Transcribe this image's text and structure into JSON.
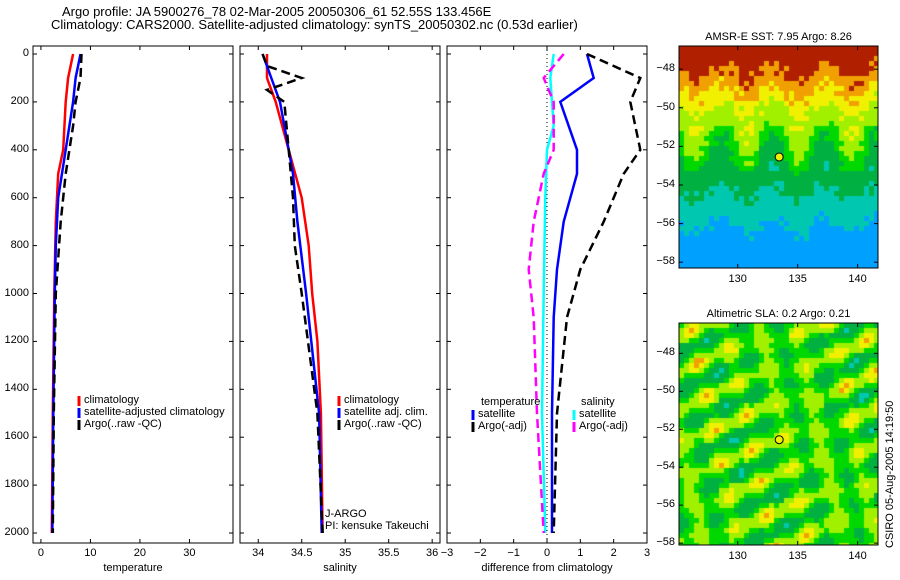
{
  "title_line1": "Argo profile: JA 5900276_78 02-Mar-2005 20050306_61 52.55S 133.456E",
  "title_line2": "Climatology: CARS2000. Satellite-adjusted climatology: synTS_20050302.nc (0.53d earlier)",
  "credit": "CSIRO 05-Aug-2005 14:19:50",
  "chart_data": [
    {
      "type": "line",
      "xlabel": "temperature",
      "ylabel": "",
      "xlim": [
        -1.6,
        38.8
      ],
      "ylim": [
        2040,
        0
      ],
      "xticks": [
        0,
        10,
        20,
        30
      ],
      "yticks": [
        0,
        200,
        400,
        600,
        800,
        1000,
        1200,
        1400,
        1600,
        1800,
        2000
      ],
      "legend": [
        "climatology",
        "satellite-adjusted climatology",
        "Argo(..raw -QC)"
      ],
      "series": [
        {
          "name": "climatology",
          "color": "#ff0000",
          "dash": false,
          "depth": [
            0,
            100,
            200,
            400,
            500,
            700,
            1000,
            1500,
            2000
          ],
          "values": [
            6.5,
            5.5,
            5,
            4.5,
            3.5,
            3,
            2.7,
            2.4,
            2.2
          ]
        },
        {
          "name": "satellite-adjusted climatology",
          "color": "#0000ff",
          "dash": false,
          "depth": [
            0,
            100,
            200,
            400,
            600,
            800,
            1000,
            1500,
            2000
          ],
          "values": [
            8,
            7,
            6.5,
            5,
            3.5,
            3,
            2.8,
            2.5,
            2.3
          ]
        },
        {
          "name": "Argo(..raw -QC)",
          "color": "#000000",
          "dash": true,
          "depth": [
            0,
            100,
            200,
            300,
            500,
            700,
            1000,
            1500,
            2000
          ],
          "values": [
            8.2,
            8,
            7,
            6.5,
            5,
            4,
            3,
            2.6,
            2.4
          ]
        }
      ]
    },
    {
      "type": "line",
      "xlabel": "salinity",
      "xlim": [
        33.79,
        36.09
      ],
      "ylim": [
        2040,
        0
      ],
      "xticks": [
        34,
        34.5,
        35,
        35.5,
        36
      ],
      "legend": [
        "climatology",
        "satellite adj. clim.",
        "Argo(..raw -QC)"
      ],
      "annotations": [
        "J-ARGO",
        "PI: kensuke Takeuchi"
      ],
      "series": [
        {
          "name": "climatology",
          "color": "#ff0000",
          "dash": false,
          "depth": [
            0,
            100,
            200,
            400,
            600,
            800,
            1000,
            1200,
            1500,
            2000
          ],
          "values": [
            34.1,
            34.1,
            34.2,
            34.35,
            34.5,
            34.58,
            34.62,
            34.68,
            34.72,
            34.74
          ]
        },
        {
          "name": "satellite adj. clim.",
          "color": "#0000ff",
          "dash": false,
          "depth": [
            0,
            100,
            200,
            400,
            500,
            700,
            1000,
            1500,
            2000
          ],
          "values": [
            34.05,
            34.15,
            34.25,
            34.35,
            34.4,
            34.45,
            34.55,
            34.7,
            34.73
          ]
        },
        {
          "name": "Argo(..raw -QC)",
          "color": "#000000",
          "dash": true,
          "depth": [
            0,
            50,
            100,
            150,
            200,
            400,
            600,
            800,
            1000,
            1500,
            2000
          ],
          "values": [
            34.05,
            34.1,
            34.5,
            34.1,
            34.3,
            34.35,
            34.4,
            34.42,
            34.5,
            34.68,
            34.74
          ]
        }
      ]
    },
    {
      "type": "line",
      "xlabel": "difference from climatology",
      "xlim": [
        -3,
        3
      ],
      "ylim": [
        2040,
        0
      ],
      "xticks": [
        -3,
        -2,
        -1,
        0,
        1,
        2,
        3
      ],
      "legend_left": {
        "title": "temperature",
        "items": [
          "satellite",
          "Argo(-adj)"
        ]
      },
      "legend_right": {
        "title": "salinity",
        "items": [
          "satellite",
          "Argo(-adj)"
        ]
      },
      "series": [
        {
          "name": "temperature satellite",
          "color": "#0000ff",
          "dash": false,
          "depth": [
            0,
            100,
            200,
            400,
            500,
            700,
            900,
            1100,
            1500,
            2000
          ],
          "values": [
            1.2,
            1.4,
            0.4,
            0.9,
            0.9,
            0.5,
            0.3,
            0.2,
            0.15,
            0.15
          ]
        },
        {
          "name": "temperature Argo(-adj)",
          "color": "#000000",
          "dash": true,
          "depth": [
            0,
            50,
            100,
            200,
            400,
            500,
            700,
            900,
            1100,
            1500,
            2000
          ],
          "values": [
            1.2,
            2,
            2.8,
            2.5,
            2.8,
            2.3,
            1.7,
            1,
            0.6,
            0.3,
            0.2
          ]
        },
        {
          "name": "salinity satellite",
          "color": "#00ffff",
          "dash": false,
          "depth": [
            0,
            100,
            300,
            400,
            600,
            1000,
            1500,
            2000
          ],
          "values": [
            0.2,
            0.1,
            0.2,
            0,
            -0.05,
            -0.1,
            -0.15,
            -0.05
          ]
        },
        {
          "name": "salinity Argo(-adj)",
          "color": "#ff00ff",
          "dash": true,
          "depth": [
            0,
            100,
            200,
            400,
            500,
            700,
            900,
            1100,
            1500,
            2000
          ],
          "values": [
            0.5,
            -0.1,
            0.2,
            0.2,
            -0.1,
            -0.4,
            -0.55,
            -0.4,
            -0.3,
            -0.1
          ]
        }
      ]
    },
    {
      "type": "heatmap",
      "title": "AMSR-E SST: 7.95 Argo: 8.26",
      "xlim": [
        125.1,
        141.7
      ],
      "ylim": [
        -58.3,
        -46.8
      ],
      "xticks": [
        130,
        135,
        140
      ],
      "yticks": [
        -48,
        -50,
        -52,
        -54,
        -56,
        -58
      ],
      "marker": {
        "lon": 133.456,
        "lat": -52.55
      }
    },
    {
      "type": "heatmap",
      "title": "Altimetric SLA: 0.2 Argo: 0.21",
      "xlim": [
        125.1,
        141.7
      ],
      "ylim": [
        -58.1,
        -46.4
      ],
      "xticks": [
        130,
        135,
        140
      ],
      "yticks": [
        -48,
        -50,
        -52,
        -54,
        -56,
        -58
      ],
      "marker": {
        "lon": 133.456,
        "lat": -52.55
      }
    }
  ]
}
